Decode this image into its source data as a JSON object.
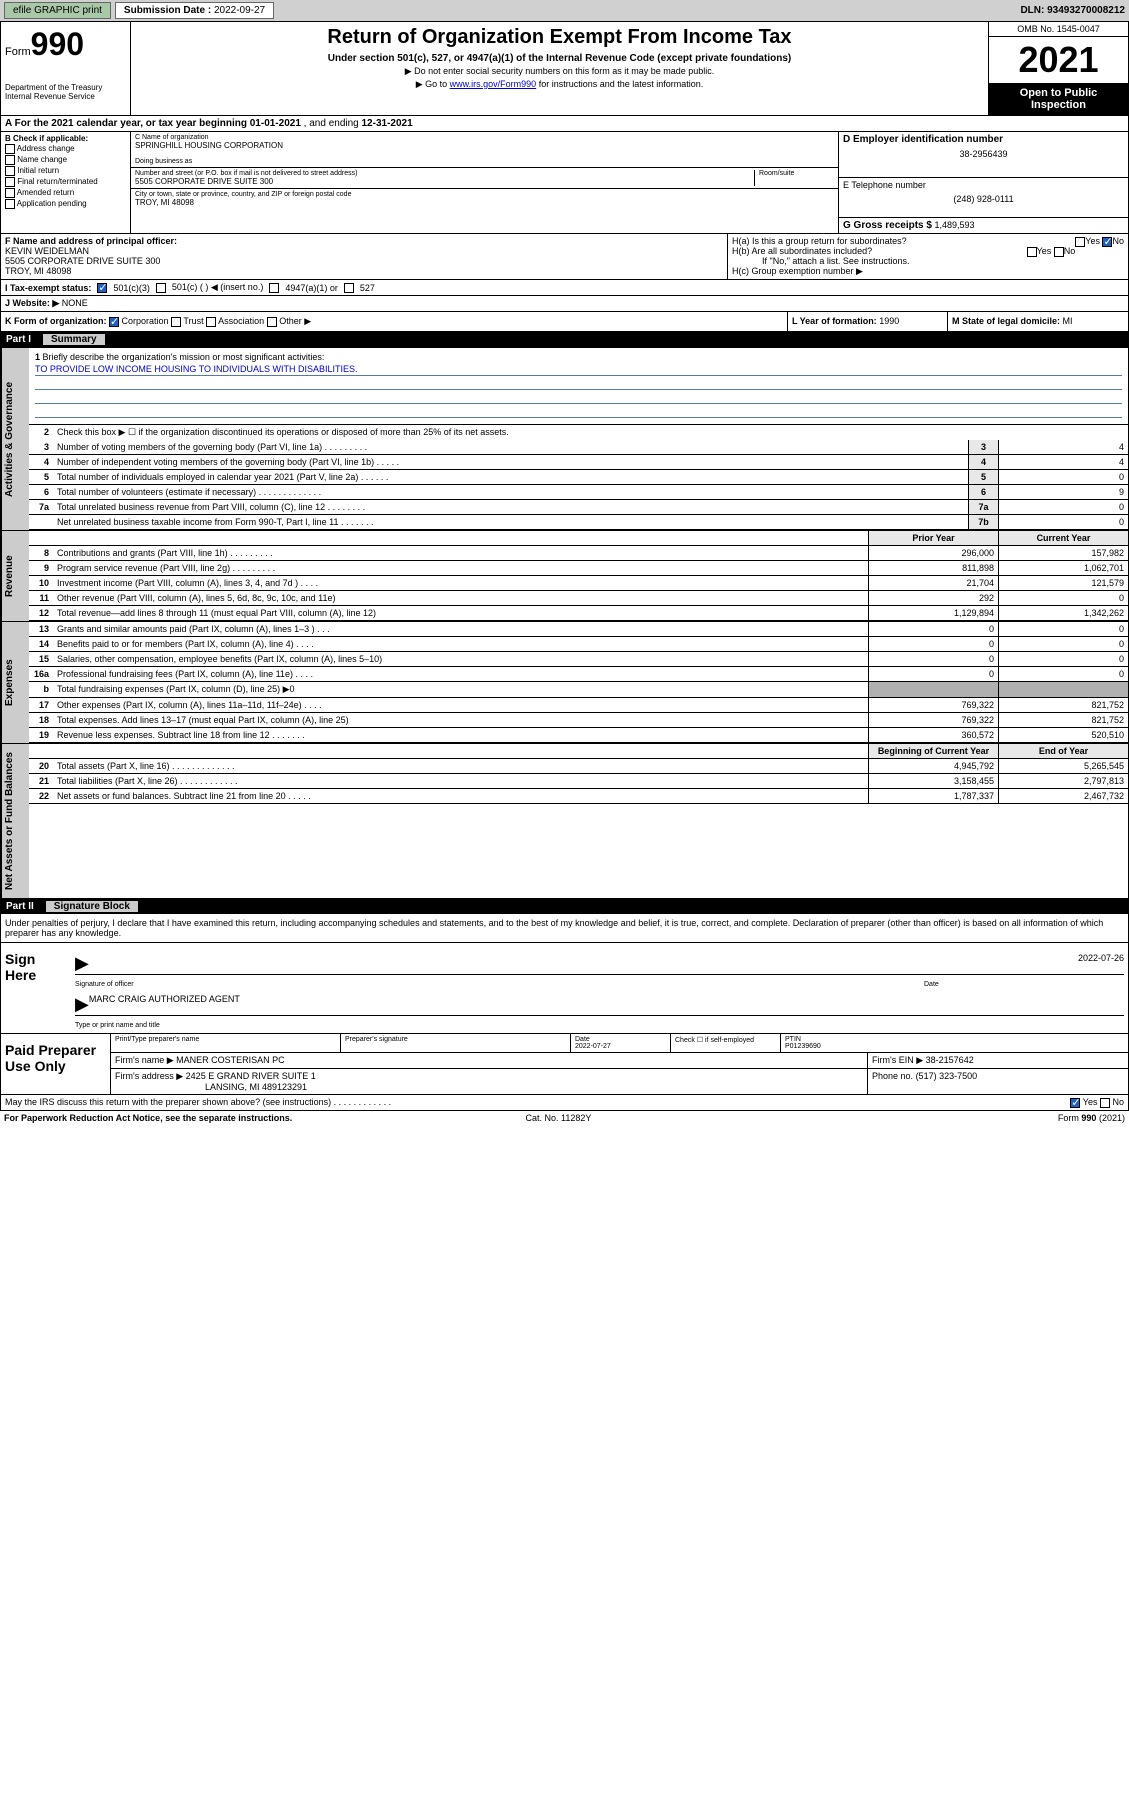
{
  "toolbar": {
    "efile": "efile GRAPHIC print",
    "sub_label": "Submission Date :",
    "sub_date": "2022-09-27",
    "dln_label": "DLN:",
    "dln": "93493270008212"
  },
  "header": {
    "form_label": "Form",
    "form_num": "990",
    "title": "Return of Organization Exempt From Income Tax",
    "subtitle": "Under section 501(c), 527, or 4947(a)(1) of the Internal Revenue Code (except private foundations)",
    "instr1": "▶ Do not enter social security numbers on this form as it may be made public.",
    "instr2_pre": "▶ Go to ",
    "instr2_link": "www.irs.gov/Form990",
    "instr2_post": " for instructions and the latest information.",
    "omb": "OMB No. 1545-0047",
    "year": "2021",
    "otp": "Open to Public Inspection",
    "dept": "Department of the Treasury",
    "irs": "Internal Revenue Service"
  },
  "secA": {
    "text_pre": "A For the 2021 calendar year, or tax year beginning ",
    "begin": "01-01-2021",
    "mid": " , and ending ",
    "end": "12-31-2021"
  },
  "B": {
    "label": "B Check if applicable:",
    "opts": [
      "Address change",
      "Name change",
      "Initial return",
      "Final return/terminated",
      "Amended return",
      "Application pending"
    ]
  },
  "C": {
    "name_label": "C Name of organization",
    "name": "SPRINGHILL HOUSING CORPORATION",
    "dba": "Doing business as",
    "addr_label": "Number and street (or P.O. box if mail is not delivered to street address)",
    "room_label": "Room/suite",
    "addr": "5505 CORPORATE DRIVE SUITE 300",
    "city_label": "City or town, state or province, country, and ZIP or foreign postal code",
    "city": "TROY, MI  48098"
  },
  "D": {
    "label": "D Employer identification number",
    "ein": "38-2956439"
  },
  "E": {
    "label": "E Telephone number",
    "phone": "(248) 928-0111"
  },
  "G": {
    "label": "G Gross receipts $",
    "amt": "1,489,593"
  },
  "F": {
    "label": "F Name and address of principal officer:",
    "name": "KEVIN WEIDELMAN",
    "addr1": "5505 CORPORATE DRIVE SUITE 300",
    "addr2": "TROY, MI  48098"
  },
  "H": {
    "a": "H(a)  Is this a group return for subordinates?",
    "b": "H(b)  Are all subordinates included?",
    "b_note": "If \"No,\" attach a list. See instructions.",
    "c": "H(c)  Group exemption number ▶",
    "yes": "Yes",
    "no": "No"
  },
  "I": {
    "label": "I  Tax-exempt status:",
    "o1": "501(c)(3)",
    "o2": "501(c) (  ) ◀ (insert no.)",
    "o3": "4947(a)(1) or",
    "o4": "527"
  },
  "J": {
    "label": "J  Website: ▶",
    "val": "NONE"
  },
  "K": {
    "label": "K Form of organization:",
    "opts": [
      "Corporation",
      "Trust",
      "Association",
      "Other ▶"
    ]
  },
  "L": {
    "label": "L Year of formation:",
    "val": "1990"
  },
  "M": {
    "label": "M State of legal domicile:",
    "val": "MI"
  },
  "partI": {
    "num": "Part I",
    "title": "Summary"
  },
  "vtabs": {
    "ag": "Activities & Governance",
    "rev": "Revenue",
    "exp": "Expenses",
    "na": "Net Assets or Fund Balances"
  },
  "mission": {
    "num": "1",
    "label": "Briefly describe the organization's mission or most significant activities:",
    "text": "TO PROVIDE LOW INCOME HOUSING TO INDIVIDUALS WITH DISABILITIES."
  },
  "line2": {
    "num": "2",
    "text": "Check this box ▶ ☐  if the organization discontinued its operations or disposed of more than 25% of its net assets."
  },
  "govLines": [
    {
      "n": "3",
      "t": "Number of voting members of the governing body (Part VI, line 1a)  .   .   .   .   .   .   .   .   .",
      "b": "3",
      "v": "4"
    },
    {
      "n": "4",
      "t": "Number of independent voting members of the governing body (Part VI, line 1b)  .   .   .   .   .",
      "b": "4",
      "v": "4"
    },
    {
      "n": "5",
      "t": "Total number of individuals employed in calendar year 2021 (Part V, line 2a)  .   .   .   .   .   .",
      "b": "5",
      "v": "0"
    },
    {
      "n": "6",
      "t": "Total number of volunteers (estimate if necessary)  .   .   .   .   .   .   .   .   .   .   .   .   .",
      "b": "6",
      "v": "9"
    },
    {
      "n": "7a",
      "t": "Total unrelated business revenue from Part VIII, column (C), line 12  .   .   .   .   .   .   .   .",
      "b": "7a",
      "v": "0"
    },
    {
      "n": "",
      "t": "Net unrelated business taxable income from Form 990-T, Part I, line 11  .   .   .   .   .   .   .",
      "b": "7b",
      "v": "0"
    }
  ],
  "yearHdr": {
    "prior": "Prior Year",
    "current": "Current Year",
    "boy": "Beginning of Current Year",
    "eoy": "End of Year"
  },
  "revLines": [
    {
      "n": "8",
      "t": "Contributions and grants (Part VIII, line 1h)  .   .   .   .   .   .   .   .   .",
      "p": "296,000",
      "c": "157,982"
    },
    {
      "n": "9",
      "t": "Program service revenue (Part VIII, line 2g)  .   .   .   .   .   .   .   .   .",
      "p": "811,898",
      "c": "1,062,701"
    },
    {
      "n": "10",
      "t": "Investment income (Part VIII, column (A), lines 3, 4, and 7d )  .   .   .   .",
      "p": "21,704",
      "c": "121,579"
    },
    {
      "n": "11",
      "t": "Other revenue (Part VIII, column (A), lines 5, 6d, 8c, 9c, 10c, and 11e)",
      "p": "292",
      "c": "0"
    },
    {
      "n": "12",
      "t": "Total revenue—add lines 8 through 11 (must equal Part VIII, column (A), line 12)",
      "p": "1,129,894",
      "c": "1,342,262"
    }
  ],
  "expLines": [
    {
      "n": "13",
      "t": "Grants and similar amounts paid (Part IX, column (A), lines 1–3 )  .   .   .",
      "p": "0",
      "c": "0"
    },
    {
      "n": "14",
      "t": "Benefits paid to or for members (Part IX, column (A), line 4)  .   .   .   .",
      "p": "0",
      "c": "0"
    },
    {
      "n": "15",
      "t": "Salaries, other compensation, employee benefits (Part IX, column (A), lines 5–10)",
      "p": "0",
      "c": "0"
    },
    {
      "n": "16a",
      "t": "Professional fundraising fees (Part IX, column (A), line 11e)  .   .   .   .",
      "p": "0",
      "c": "0"
    },
    {
      "n": "b",
      "t": "Total fundraising expenses (Part IX, column (D), line 25) ▶0",
      "p": "",
      "c": "",
      "grey": true
    },
    {
      "n": "17",
      "t": "Other expenses (Part IX, column (A), lines 11a–11d, 11f–24e)  .   .   .   .",
      "p": "769,322",
      "c": "821,752"
    },
    {
      "n": "18",
      "t": "Total expenses. Add lines 13–17 (must equal Part IX, column (A), line 25)",
      "p": "769,322",
      "c": "821,752"
    },
    {
      "n": "19",
      "t": "Revenue less expenses. Subtract line 18 from line 12  .   .   .   .   .   .   .",
      "p": "360,572",
      "c": "520,510"
    }
  ],
  "naLines": [
    {
      "n": "20",
      "t": "Total assets (Part X, line 16)  .   .   .   .   .   .   .   .   .   .   .   .   .",
      "p": "4,945,792",
      "c": "5,265,545"
    },
    {
      "n": "21",
      "t": "Total liabilities (Part X, line 26)  .   .   .   .   .   .   .   .   .   .   .   .",
      "p": "3,158,455",
      "c": "2,797,813"
    },
    {
      "n": "22",
      "t": "Net assets or fund balances. Subtract line 21 from line 20  .   .   .   .   .",
      "p": "1,787,337",
      "c": "2,467,732"
    }
  ],
  "partII": {
    "num": "Part II",
    "title": "Signature Block"
  },
  "sigText": "Under penalties of perjury, I declare that I have examined this return, including accompanying schedules and statements, and to the best of my knowledge and belief, it is true, correct, and complete. Declaration of preparer (other than officer) is based on all information of which preparer has any knowledge.",
  "sign": {
    "label": "Sign Here",
    "sig_officer": "Signature of officer",
    "date_label": "Date",
    "date": "2022-07-26",
    "name": "MARC CRAIG  AUTHORIZED AGENT",
    "name_label": "Type or print name and title"
  },
  "prep": {
    "label": "Paid Preparer Use Only",
    "h1": "Print/Type preparer's name",
    "h2": "Preparer's signature",
    "h3": "Date",
    "h4": "Check ☐ if self-employed",
    "h5": "PTIN",
    "date": "2022-07-27",
    "ptin": "P01239690",
    "firm_name_l": "Firm's name      ▶",
    "firm_name": "MANER COSTERISAN PC",
    "firm_ein_l": "Firm's EIN ▶",
    "firm_ein": "38-2157642",
    "firm_addr_l": "Firm's address ▶",
    "firm_addr1": "2425 E GRAND RIVER SUITE 1",
    "firm_addr2": "LANSING, MI  489123291",
    "phone_l": "Phone no.",
    "phone": "(517) 323-7500"
  },
  "discuss": {
    "text": "May the IRS discuss this return with the preparer shown above? (see instructions)  .   .   .   .   .   .   .   .   .   .   .   .",
    "yes": "Yes",
    "no": "No"
  },
  "footer": {
    "left": "For Paperwork Reduction Act Notice, see the separate instructions.",
    "mid": "Cat. No. 11282Y",
    "right": "Form 990 (2021)",
    "right_bold": "990"
  }
}
